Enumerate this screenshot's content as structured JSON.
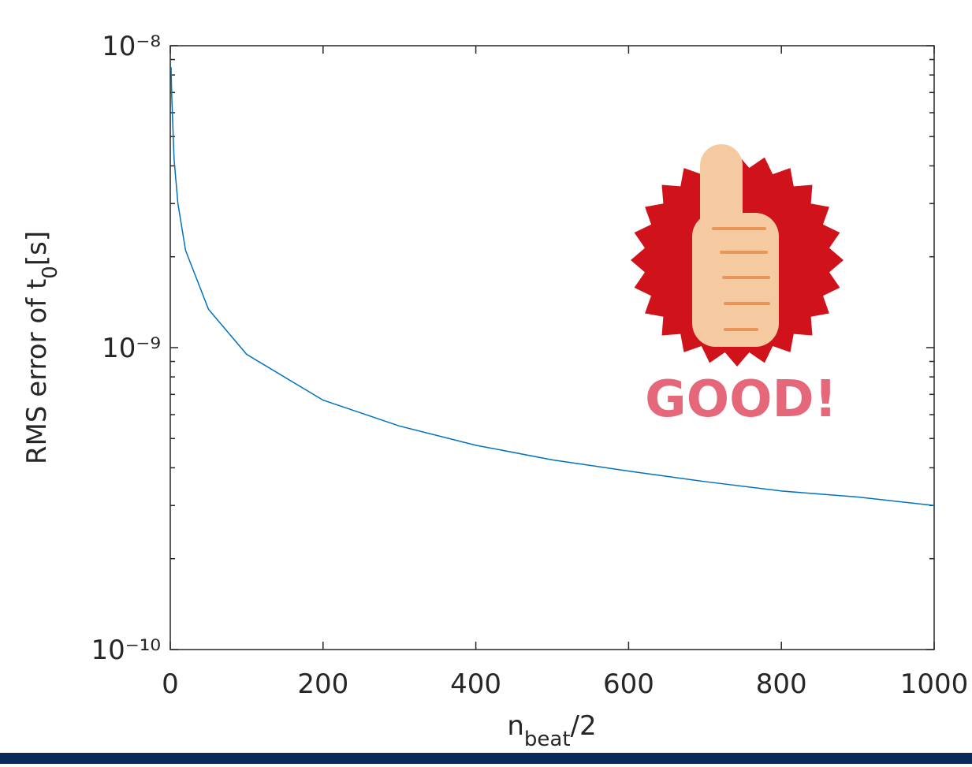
{
  "chart_data": {
    "type": "line",
    "ylabel": [
      "RMS error of t",
      "0",
      "[s]"
    ],
    "xlabel": [
      "n",
      "beat",
      "/2"
    ],
    "annotation": "GOOD!",
    "x": [
      1,
      2,
      5,
      10,
      20,
      50,
      100,
      200,
      300,
      400,
      500,
      600,
      700,
      800,
      900,
      1000
    ],
    "values": [
      8.5e-09,
      6.7e-09,
      4.2e-09,
      3e-09,
      2.1e-09,
      1.34e-09,
      9.5e-10,
      6.7e-10,
      5.5e-10,
      4.75e-10,
      4.25e-10,
      3.9e-10,
      3.6e-10,
      3.35e-10,
      3.2e-10,
      3e-10
    ],
    "color": "#0072bd",
    "xlim": [
      0,
      1000
    ],
    "xticks": [
      0,
      200,
      400,
      600,
      800,
      1000
    ],
    "ylim": [
      1e-10,
      1e-08
    ],
    "ylog": true,
    "yticks": [
      {
        "value": 1e-10,
        "label": "10⁻¹⁰"
      },
      {
        "value": 1e-09,
        "label": "10⁻⁹"
      },
      {
        "value": 1e-08,
        "label": "10⁻⁸"
      }
    ]
  }
}
